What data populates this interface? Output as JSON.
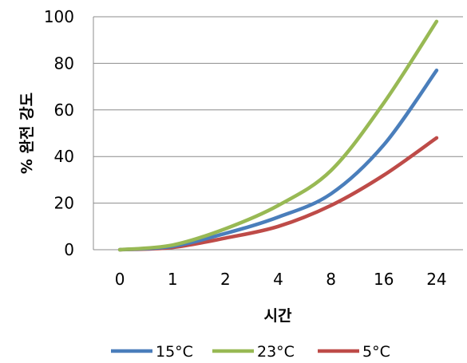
{
  "chart_data": {
    "type": "line",
    "title": "",
    "xlabel": "시간",
    "ylabel": "% 완전 강도",
    "categories": [
      "0",
      "1",
      "2",
      "4",
      "8",
      "16",
      "24"
    ],
    "ylim": [
      0,
      100
    ],
    "yticks": [
      0,
      20,
      40,
      60,
      80,
      100
    ],
    "grid": true,
    "legend_position": "bottom",
    "series": [
      {
        "name": "15°C",
        "color": "#4a7ebb",
        "values": [
          0,
          1.5,
          7,
          14,
          24,
          45,
          77
        ]
      },
      {
        "name": "23°C",
        "color": "#98b954",
        "values": [
          0,
          2,
          9,
          19,
          34,
          63,
          98
        ]
      },
      {
        "name": "5°C",
        "color": "#be4b48",
        "values": [
          0,
          1,
          5,
          10,
          19,
          32,
          48
        ]
      }
    ]
  }
}
